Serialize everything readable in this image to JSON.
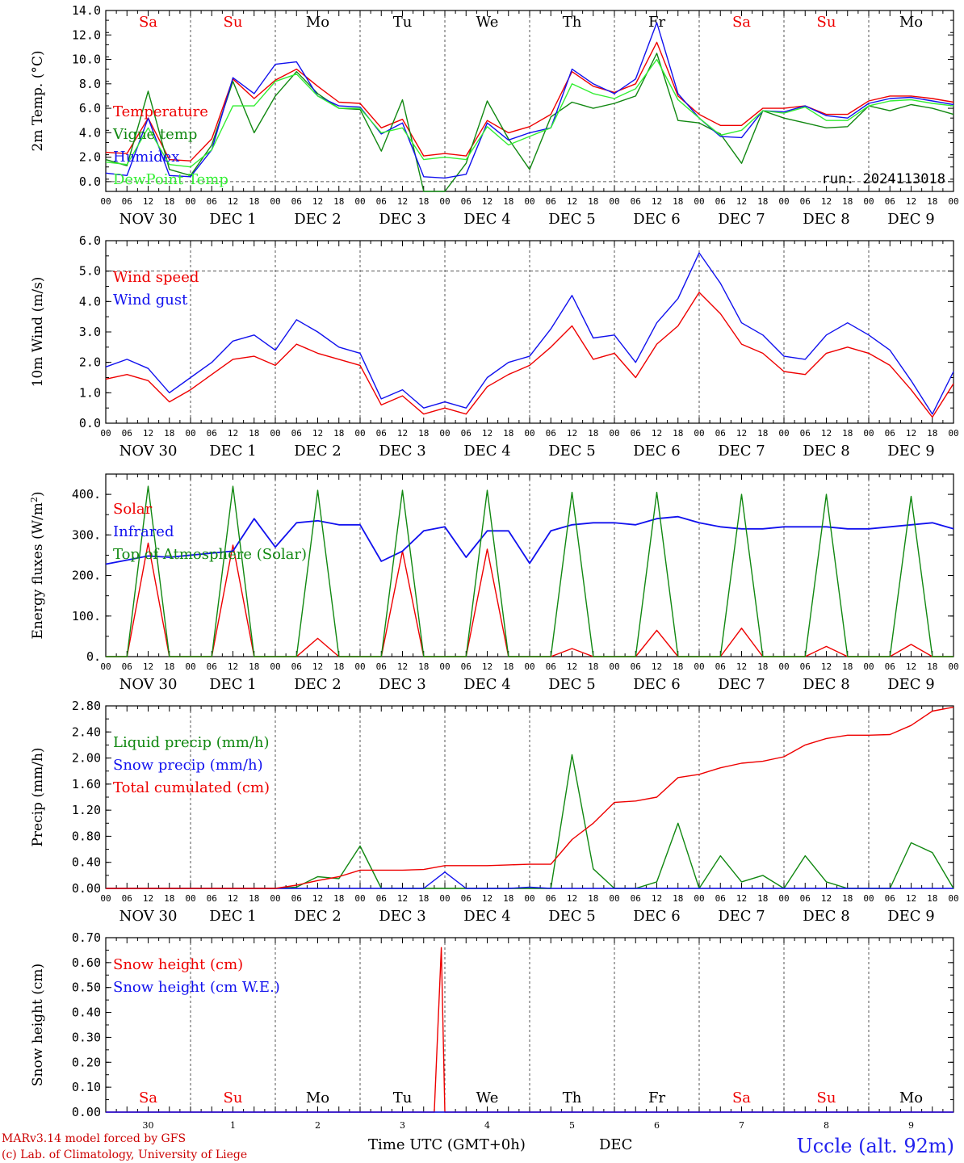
{
  "meta": {
    "run_label": "run: 2024113018",
    "footer_model": "MARv3.14 model forced by GFS",
    "footer_lab": "(c) Lab. of Climatology, University of Liege",
    "footer_time": "Time UTC (GMT+0h)",
    "footer_month": "DEC",
    "station": "Uccle (alt. 92m)"
  },
  "colors": {
    "red": "#ee0000",
    "green": "#118811",
    "blue": "#1111ee",
    "lightgreen": "#33ee33",
    "grid": "#555555"
  },
  "axis": {
    "hours": [
      "00",
      "06",
      "12",
      "18"
    ],
    "end_hour": "00",
    "days": [
      "Sa",
      "Su",
      "Mo",
      "Tu",
      "We",
      "Th",
      "Fr",
      "Sa",
      "Su",
      "Mo"
    ],
    "day_colors": [
      "red",
      "red",
      "black",
      "black",
      "black",
      "black",
      "black",
      "red",
      "red",
      "black"
    ],
    "dates": [
      "NOV 30",
      "DEC  1",
      "DEC  2",
      "DEC  3",
      "DEC  4",
      "DEC  5",
      "DEC  6",
      "DEC  7",
      "DEC  8",
      "DEC  9"
    ],
    "day_numbers": [
      "30",
      "1",
      "2",
      "3",
      "4",
      "5",
      "6",
      "7",
      "8",
      "9"
    ]
  },
  "chart_data": [
    {
      "type": "line",
      "ylabel": "2m Temp. (°C)",
      "ylim": [
        -0.8,
        14.0
      ],
      "yticks": [
        "14.0",
        "12.0",
        "10.0",
        "8.0",
        "6.0",
        "4.0",
        "2.0",
        "0.0"
      ],
      "ytick_values": [
        14,
        12,
        10,
        8,
        6,
        4,
        2,
        0
      ],
      "dashed_line": 0,
      "x_hours": [
        0,
        6,
        12,
        18,
        24,
        30,
        36,
        42,
        48,
        54,
        60,
        66,
        72,
        78,
        84,
        90,
        96,
        102,
        108,
        114,
        120,
        126,
        132,
        138,
        144,
        150,
        156,
        162,
        168,
        174,
        180,
        186,
        192,
        198,
        204,
        210,
        216,
        222,
        228,
        234,
        240
      ],
      "series": [
        {
          "name": "Temperature",
          "color": "red",
          "values": [
            2.4,
            2.3,
            5.2,
            1.8,
            1.7,
            3.5,
            8.4,
            6.8,
            8.3,
            9.2,
            7.8,
            6.5,
            6.4,
            4.4,
            5.1,
            2.1,
            2.3,
            2.1,
            5.0,
            4.0,
            4.5,
            5.5,
            9.0,
            7.8,
            7.3,
            8.0,
            11.4,
            7.0,
            5.5,
            4.6,
            4.6,
            6.0,
            6.0,
            6.2,
            5.5,
            5.5,
            6.6,
            7.0,
            7.0,
            6.8,
            6.5
          ]
        },
        {
          "name": "Vigne temp",
          "color": "green",
          "values": [
            1.8,
            1.3,
            7.4,
            1.0,
            0.5,
            3.0,
            8.2,
            4.0,
            7.0,
            9.0,
            7.2,
            6.0,
            5.9,
            2.5,
            6.7,
            -1.0,
            -1.0,
            1.5,
            6.6,
            3.5,
            1.0,
            5.3,
            6.5,
            6.0,
            6.4,
            7.0,
            10.5,
            5.0,
            4.8,
            3.9,
            1.5,
            5.8,
            5.2,
            4.8,
            4.4,
            4.5,
            6.2,
            5.8,
            6.3,
            6.0,
            5.5
          ]
        },
        {
          "name": "Humidex",
          "color": "blue",
          "values": [
            0.7,
            0.5,
            5.2,
            0.5,
            0.4,
            2.6,
            8.5,
            7.2,
            9.6,
            9.8,
            7.0,
            6.2,
            6.1,
            3.9,
            4.8,
            0.4,
            0.3,
            0.6,
            4.8,
            3.4,
            4.0,
            4.4,
            9.2,
            8.0,
            7.2,
            8.4,
            13.0,
            7.2,
            5.2,
            3.7,
            3.6,
            5.8,
            5.7,
            6.2,
            5.4,
            5.2,
            6.4,
            6.8,
            6.9,
            6.6,
            6.3
          ]
        },
        {
          "name": "DewPoint Temp",
          "color": "lightgreen",
          "values": [
            1.6,
            1.4,
            4.4,
            1.4,
            1.2,
            2.6,
            6.2,
            6.2,
            8.2,
            8.8,
            7.0,
            6.0,
            6.0,
            4.0,
            4.4,
            1.8,
            2.0,
            1.8,
            4.5,
            3.0,
            3.7,
            4.4,
            8.0,
            7.2,
            6.8,
            7.6,
            10.0,
            6.7,
            5.2,
            3.8,
            4.2,
            5.8,
            5.6,
            6.1,
            5.0,
            5.0,
            6.2,
            6.6,
            6.7,
            6.4,
            6.2
          ]
        }
      ]
    },
    {
      "type": "line",
      "ylabel": "10m Wind (m/s)",
      "ylim": [
        0.0,
        6.0
      ],
      "yticks": [
        "6.0",
        "5.0",
        "4.0",
        "3.0",
        "2.0",
        "1.0",
        "0.0"
      ],
      "ytick_values": [
        6,
        5,
        4,
        3,
        2,
        1,
        0
      ],
      "dashed_line": 5,
      "x_hours": [
        0,
        6,
        12,
        18,
        24,
        30,
        36,
        42,
        48,
        54,
        60,
        66,
        72,
        78,
        84,
        90,
        96,
        102,
        108,
        114,
        120,
        126,
        132,
        138,
        144,
        150,
        156,
        162,
        168,
        174,
        180,
        186,
        192,
        198,
        204,
        210,
        216,
        222,
        228,
        234,
        240
      ],
      "series": [
        {
          "name": "Wind speed",
          "color": "red",
          "values": [
            1.45,
            1.6,
            1.4,
            0.7,
            1.1,
            1.6,
            2.1,
            2.2,
            1.9,
            2.6,
            2.3,
            2.1,
            1.9,
            0.6,
            0.9,
            0.3,
            0.5,
            0.3,
            1.2,
            1.6,
            1.9,
            2.5,
            3.2,
            2.1,
            2.3,
            1.5,
            2.6,
            3.2,
            4.3,
            3.6,
            2.6,
            2.3,
            1.7,
            1.6,
            2.3,
            2.5,
            2.3,
            1.9,
            1.1,
            0.2,
            1.3
          ]
        },
        {
          "name": "Wind gust",
          "color": "blue",
          "values": [
            1.85,
            2.1,
            1.8,
            1.0,
            1.5,
            2.0,
            2.7,
            2.9,
            2.4,
            3.4,
            3.0,
            2.5,
            2.3,
            0.8,
            1.1,
            0.5,
            0.7,
            0.5,
            1.5,
            2.0,
            2.2,
            3.1,
            4.2,
            2.8,
            2.9,
            2.0,
            3.3,
            4.1,
            5.6,
            4.6,
            3.3,
            2.9,
            2.2,
            2.1,
            2.9,
            3.3,
            2.9,
            2.4,
            1.4,
            0.3,
            1.7
          ]
        }
      ]
    },
    {
      "type": "line",
      "ylabel": "Energy fluxes (W/m2)",
      "ylim": [
        0,
        450
      ],
      "yticks": [
        "400.",
        "300.",
        "200.",
        "100.",
        "0."
      ],
      "ytick_values": [
        400,
        300,
        200,
        100,
        0
      ],
      "dashed_line": null,
      "x_hours": [
        0,
        6,
        12,
        18,
        24,
        30,
        36,
        42,
        48,
        54,
        60,
        66,
        72,
        78,
        84,
        90,
        96,
        102,
        108,
        114,
        120,
        126,
        132,
        138,
        144,
        150,
        156,
        162,
        168,
        174,
        180,
        186,
        192,
        198,
        204,
        210,
        216,
        222,
        228,
        234,
        240
      ],
      "series": [
        {
          "name": "Solar",
          "color": "red",
          "values": [
            0,
            0,
            280,
            0,
            0,
            0,
            275,
            0,
            0,
            0,
            45,
            0,
            0,
            0,
            260,
            0,
            0,
            0,
            265,
            0,
            0,
            0,
            20,
            0,
            0,
            0,
            65,
            0,
            0,
            0,
            70,
            0,
            0,
            0,
            25,
            0,
            0,
            0,
            30,
            0,
            0
          ]
        },
        {
          "name": "Infrared",
          "color": "blue",
          "values": [
            228,
            238,
            248,
            245,
            250,
            255,
            260,
            340,
            270,
            330,
            335,
            325,
            325,
            235,
            260,
            310,
            320,
            245,
            310,
            310,
            230,
            310,
            325,
            330,
            330,
            325,
            340,
            345,
            330,
            320,
            315,
            315,
            320,
            320,
            320,
            315,
            315,
            320,
            325,
            330,
            315
          ]
        },
        {
          "name": "Top of Atmosphere (Solar)",
          "color": "green",
          "values": [
            0,
            0,
            420,
            0,
            0,
            0,
            420,
            0,
            0,
            0,
            410,
            0,
            0,
            0,
            410,
            0,
            0,
            0,
            410,
            0,
            0,
            0,
            405,
            0,
            0,
            0,
            405,
            0,
            0,
            0,
            400,
            0,
            0,
            0,
            400,
            0,
            0,
            0,
            395,
            0,
            0
          ]
        }
      ]
    },
    {
      "type": "line",
      "ylabel": "Precip (mm/h)",
      "ylim": [
        0.0,
        2.8
      ],
      "yticks": [
        "2.80",
        "2.40",
        "2.00",
        "1.60",
        "1.20",
        "0.80",
        "0.40",
        "0.00"
      ],
      "ytick_values": [
        2.8,
        2.4,
        2.0,
        1.6,
        1.2,
        0.8,
        0.4,
        0.0
      ],
      "dashed_line": null,
      "x_hours": [
        0,
        6,
        12,
        18,
        24,
        30,
        36,
        42,
        48,
        54,
        60,
        66,
        72,
        78,
        84,
        90,
        96,
        102,
        108,
        114,
        120,
        126,
        132,
        138,
        144,
        150,
        156,
        162,
        168,
        174,
        180,
        186,
        192,
        198,
        204,
        210,
        216,
        222,
        228,
        234,
        240
      ],
      "series": [
        {
          "name": "Liquid precip (mm/h)",
          "color": "green",
          "values": [
            0,
            0,
            0,
            0,
            0,
            0,
            0,
            0,
            0,
            0.02,
            0.18,
            0.15,
            0.65,
            0,
            0,
            0,
            0,
            0,
            0,
            0,
            0,
            0,
            2.05,
            0.3,
            0,
            0,
            0.1,
            1.0,
            0,
            0.5,
            0.1,
            0.2,
            0,
            0.5,
            0.1,
            0,
            0,
            0,
            0.7,
            0.55,
            0
          ]
        },
        {
          "name": "Snow precip (mm/h)",
          "color": "blue",
          "values": [
            0,
            0,
            0,
            0,
            0,
            0,
            0,
            0,
            0,
            0,
            0,
            0,
            0,
            0,
            0,
            0,
            0.25,
            0,
            0,
            0,
            0.02,
            0,
            0,
            0,
            0,
            0,
            0,
            0,
            0,
            0,
            0,
            0,
            0,
            0,
            0,
            0,
            0,
            0,
            0,
            0,
            0
          ]
        },
        {
          "name": "Total cumulated (cm)",
          "color": "red",
          "values": [
            0,
            0,
            0,
            0,
            0,
            0,
            0,
            0,
            0,
            0.05,
            0.12,
            0.18,
            0.28,
            0.28,
            0.28,
            0.29,
            0.35,
            0.35,
            0.35,
            0.36,
            0.37,
            0.37,
            0.75,
            1.0,
            1.32,
            1.34,
            1.4,
            1.7,
            1.75,
            1.85,
            1.92,
            1.95,
            2.02,
            2.2,
            2.3,
            2.35,
            2.35,
            2.36,
            2.5,
            2.72,
            2.78
          ]
        }
      ]
    },
    {
      "type": "line",
      "ylabel": "Snow height (cm)",
      "ylim": [
        0.0,
        0.7
      ],
      "yticks": [
        "0.70",
        "0.60",
        "0.50",
        "0.40",
        "0.30",
        "0.20",
        "0.10",
        "0.00"
      ],
      "ytick_values": [
        0.7,
        0.6,
        0.5,
        0.4,
        0.3,
        0.2,
        0.1,
        0.0
      ],
      "dashed_line": null,
      "x_hours": [
        0,
        6,
        12,
        18,
        24,
        30,
        36,
        42,
        48,
        54,
        60,
        66,
        72,
        78,
        84,
        90,
        93,
        95,
        96,
        102,
        108,
        114,
        120,
        126,
        132,
        138,
        144,
        150,
        156,
        162,
        168,
        174,
        180,
        186,
        192,
        198,
        204,
        210,
        216,
        222,
        228,
        234,
        240
      ],
      "series": [
        {
          "name": "Snow height (cm)",
          "color": "red",
          "values": [
            0,
            0,
            0,
            0,
            0,
            0,
            0,
            0,
            0,
            0,
            0,
            0,
            0,
            0,
            0,
            0,
            0,
            0.66,
            0,
            0,
            0,
            0,
            0,
            0,
            0,
            0,
            0,
            0,
            0,
            0,
            0,
            0,
            0,
            0,
            0,
            0,
            0,
            0,
            0,
            0,
            0,
            0,
            0
          ]
        },
        {
          "name": "Snow height (cm W.E.)",
          "color": "blue",
          "values": [
            0,
            0,
            0,
            0,
            0,
            0,
            0,
            0,
            0,
            0,
            0,
            0,
            0,
            0,
            0,
            0,
            0,
            0,
            0,
            0,
            0,
            0,
            0,
            0,
            0,
            0,
            0,
            0,
            0,
            0,
            0,
            0,
            0,
            0,
            0,
            0,
            0,
            0,
            0,
            0,
            0,
            0,
            0
          ]
        }
      ]
    }
  ]
}
